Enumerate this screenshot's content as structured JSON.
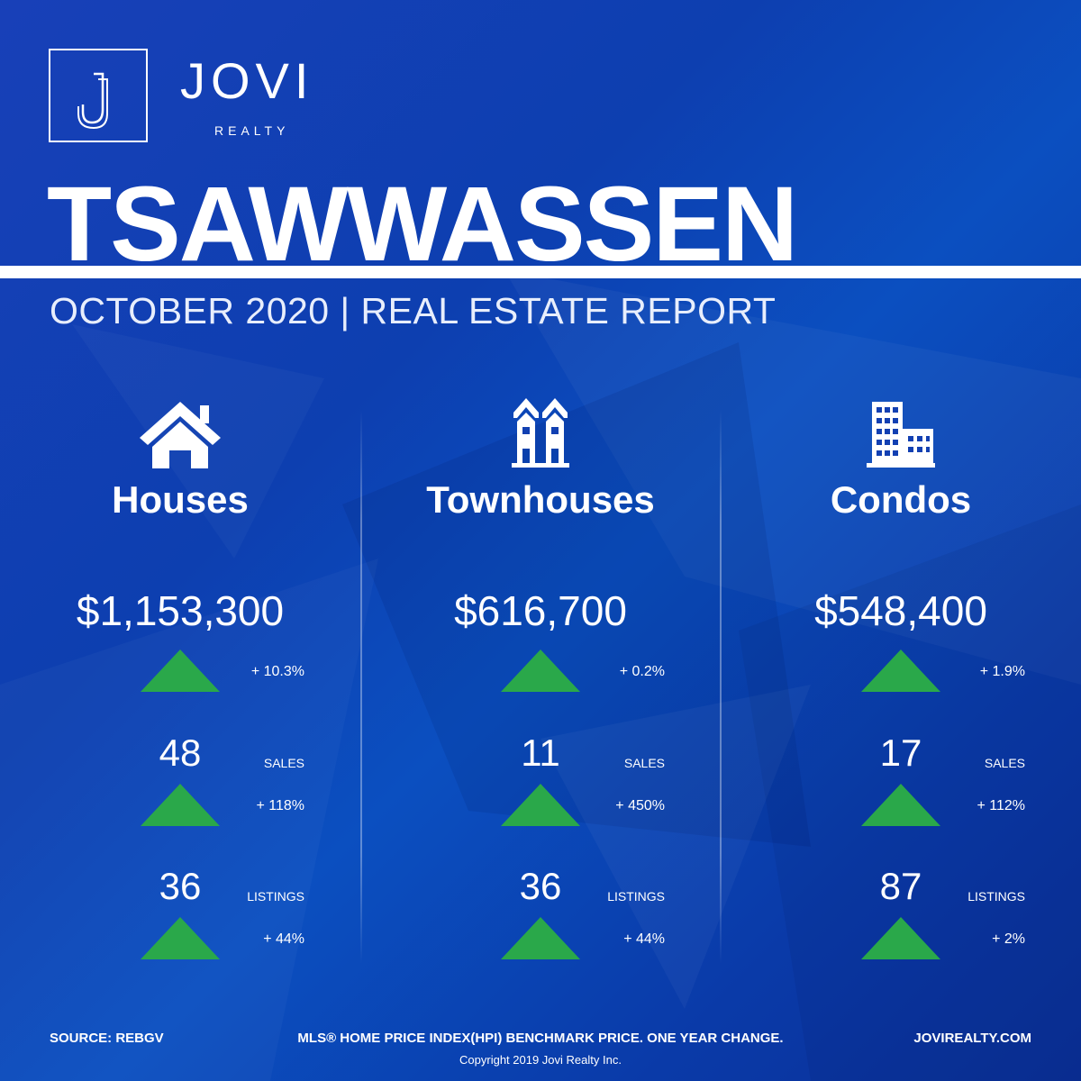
{
  "brand": {
    "name": "JOVI",
    "sub": "REALTY",
    "logo_icon": "j-monogram-icon"
  },
  "city": "TSAWWASSEN",
  "subtitle": "OCTOBER 2020 | REAL ESTATE REPORT",
  "colors": {
    "accent_up": "#2aa84a",
    "background": "#0d3fb0"
  },
  "columns": [
    {
      "icon": "house-icon",
      "title": "Houses",
      "price": "$1,153,300",
      "price_change": "+ 10.3%",
      "sales": "48",
      "sales_label": "SALES",
      "sales_change": "+ 118%",
      "listings": "36",
      "listings_label": "LISTINGS",
      "listings_change": "+ 44%"
    },
    {
      "icon": "townhouse-icon",
      "title": "Townhouses",
      "price": "$616,700",
      "price_change": "+ 0.2%",
      "sales": "11",
      "sales_label": "SALES",
      "sales_change": "+ 450%",
      "listings": "36",
      "listings_label": "LISTINGS",
      "listings_change": "+ 44%"
    },
    {
      "icon": "condo-building-icon",
      "title": "Condos",
      "price": "$548,400",
      "price_change": "+ 1.9%",
      "sales": "17",
      "sales_label": "SALES",
      "sales_change": "+ 112%",
      "listings": "87",
      "listings_label": "LISTINGS",
      "listings_change": "+ 2%"
    }
  ],
  "footer": {
    "source": "SOURCE:  REBGV",
    "note": "MLS® HOME PRICE INDEX(HPI) BENCHMARK PRICE. ONE YEAR CHANGE.",
    "website": "JOVIREALTY.COM",
    "copyright": "Copyright 2019 Jovi Realty Inc."
  }
}
